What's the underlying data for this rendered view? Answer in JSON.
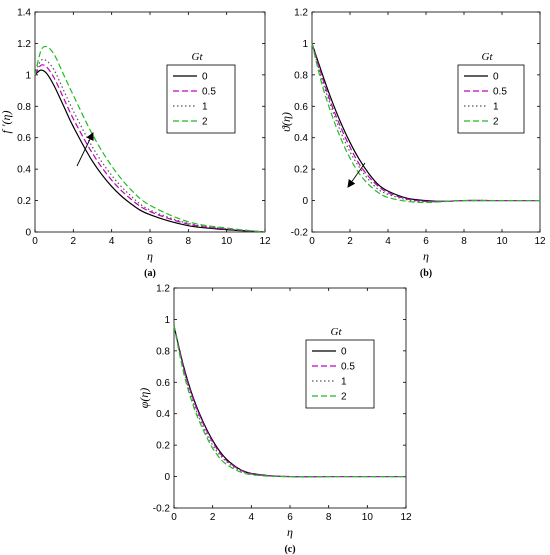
{
  "chart_data": [
    {
      "type": "line",
      "caption": "(a)",
      "xlabel": "η",
      "ylabel": "f ′(η)",
      "xlim": [
        0,
        12
      ],
      "ylim": [
        0,
        1.4
      ],
      "xticks": [
        0,
        2,
        4,
        6,
        8,
        10,
        12
      ],
      "yticks": [
        0,
        0.2,
        0.4,
        0.6,
        0.8,
        1,
        1.2,
        1.4
      ],
      "legend": {
        "title": "Gt",
        "placement": "top-right"
      },
      "annotation": "arrow pointing in direction of increasing Gt",
      "series": [
        {
          "name": "0",
          "color": "#000000",
          "dash": "solid",
          "x": [
            0,
            0.3,
            0.6,
            1,
            1.5,
            2,
            3,
            4,
            5,
            6,
            8,
            10,
            12
          ],
          "y": [
            1.0,
            1.03,
            1.01,
            0.93,
            0.8,
            0.67,
            0.45,
            0.29,
            0.18,
            0.11,
            0.04,
            0.015,
            0
          ]
        },
        {
          "name": "0.5",
          "color": "#c000c0",
          "dash": "dashed",
          "x": [
            0,
            0.3,
            0.6,
            1,
            1.5,
            2,
            3,
            4,
            5,
            6,
            8,
            10,
            12
          ],
          "y": [
            1.0,
            1.06,
            1.05,
            0.98,
            0.85,
            0.72,
            0.5,
            0.33,
            0.21,
            0.13,
            0.05,
            0.018,
            0
          ]
        },
        {
          "name": "1",
          "color": "#555555",
          "dash": "dotted",
          "x": [
            0,
            0.3,
            0.6,
            1,
            1.5,
            2,
            3,
            4,
            5,
            6,
            8,
            10,
            12
          ],
          "y": [
            1.0,
            1.09,
            1.09,
            1.03,
            0.9,
            0.77,
            0.54,
            0.36,
            0.23,
            0.14,
            0.055,
            0.02,
            0
          ]
        },
        {
          "name": "2",
          "color": "#22bb22",
          "dash": "dashed",
          "x": [
            0,
            0.3,
            0.6,
            1,
            1.5,
            2,
            3,
            4,
            5,
            6,
            8,
            10,
            12
          ],
          "y": [
            1.0,
            1.15,
            1.18,
            1.13,
            1.0,
            0.87,
            0.62,
            0.42,
            0.27,
            0.17,
            0.065,
            0.025,
            0
          ]
        }
      ]
    },
    {
      "type": "line",
      "caption": "(b)",
      "xlabel": "η",
      "ylabel": "ϑ(η)",
      "xlim": [
        0,
        12
      ],
      "ylim": [
        -0.2,
        1.2
      ],
      "xticks": [
        0,
        2,
        4,
        6,
        8,
        10,
        12
      ],
      "yticks": [
        -0.2,
        0,
        0.2,
        0.4,
        0.6,
        0.8,
        1,
        1.2
      ],
      "legend": {
        "title": "Gt",
        "placement": "top-right"
      },
      "annotation": "arrow pointing in direction of increasing Gt",
      "series": [
        {
          "name": "0",
          "color": "#000000",
          "dash": "solid",
          "x": [
            0,
            0.5,
            1,
            1.5,
            2,
            2.5,
            3,
            3.5,
            4,
            5,
            6,
            7,
            8,
            10,
            12
          ],
          "y": [
            1.0,
            0.82,
            0.65,
            0.5,
            0.37,
            0.26,
            0.17,
            0.1,
            0.06,
            0.015,
            0.0,
            -0.005,
            0,
            0,
            0
          ]
        },
        {
          "name": "0.5",
          "color": "#c000c0",
          "dash": "dashed",
          "x": [
            0,
            0.5,
            1,
            1.5,
            2,
            2.5,
            3,
            3.5,
            4,
            5,
            6,
            7,
            8,
            10,
            12
          ],
          "y": [
            1.0,
            0.8,
            0.62,
            0.47,
            0.34,
            0.23,
            0.15,
            0.09,
            0.05,
            0.01,
            -0.005,
            -0.005,
            0,
            0,
            0
          ]
        },
        {
          "name": "1",
          "color": "#555555",
          "dash": "dotted",
          "x": [
            0,
            0.5,
            1,
            1.5,
            2,
            2.5,
            3,
            3.5,
            4,
            5,
            6,
            7,
            8,
            10,
            12
          ],
          "y": [
            1.0,
            0.78,
            0.6,
            0.44,
            0.31,
            0.21,
            0.13,
            0.07,
            0.04,
            0.005,
            -0.008,
            -0.005,
            0,
            0,
            0
          ]
        },
        {
          "name": "2",
          "color": "#22bb22",
          "dash": "dashed",
          "x": [
            0,
            0.5,
            1,
            1.5,
            2,
            2.5,
            3,
            3.5,
            4,
            5,
            6,
            7,
            8,
            10,
            12
          ],
          "y": [
            1.0,
            0.75,
            0.56,
            0.4,
            0.27,
            0.17,
            0.1,
            0.05,
            0.02,
            -0.005,
            -0.012,
            -0.006,
            0,
            0,
            0
          ]
        }
      ]
    },
    {
      "type": "line",
      "caption": "(c)",
      "xlabel": "η",
      "ylabel": "φ(η)",
      "xlim": [
        0,
        12
      ],
      "ylim": [
        -0.2,
        1.2
      ],
      "xticks": [
        0,
        2,
        4,
        6,
        8,
        10,
        12
      ],
      "yticks": [
        -0.2,
        0,
        0.2,
        0.4,
        0.6,
        0.8,
        1,
        1.2
      ],
      "legend": {
        "title": "Gt",
        "placement": "top-right"
      },
      "series": [
        {
          "name": "0",
          "color": "#000000",
          "dash": "solid",
          "x": [
            0,
            0.5,
            1,
            1.5,
            2,
            2.5,
            3,
            3.5,
            4,
            5,
            6,
            8,
            10,
            12
          ],
          "y": [
            0.96,
            0.7,
            0.5,
            0.35,
            0.23,
            0.14,
            0.08,
            0.04,
            0.02,
            0.005,
            0,
            0,
            0,
            0
          ]
        },
        {
          "name": "0.5",
          "color": "#c000c0",
          "dash": "dashed",
          "x": [
            0,
            0.5,
            1,
            1.5,
            2,
            2.5,
            3,
            3.5,
            4,
            5,
            6,
            8,
            10,
            12
          ],
          "y": [
            0.96,
            0.69,
            0.49,
            0.34,
            0.22,
            0.13,
            0.075,
            0.038,
            0.018,
            0.004,
            0,
            0,
            0,
            0
          ]
        },
        {
          "name": "1",
          "color": "#555555",
          "dash": "dotted",
          "x": [
            0,
            0.5,
            1,
            1.5,
            2,
            2.5,
            3,
            3.5,
            4,
            5,
            6,
            8,
            10,
            12
          ],
          "y": [
            0.96,
            0.68,
            0.47,
            0.32,
            0.2,
            0.12,
            0.068,
            0.034,
            0.016,
            0.003,
            0,
            0,
            0,
            0
          ]
        },
        {
          "name": "2",
          "color": "#22bb22",
          "dash": "dashed",
          "x": [
            0,
            0.5,
            1,
            1.5,
            2,
            2.5,
            3,
            3.5,
            4,
            5,
            6,
            8,
            10,
            12
          ],
          "y": [
            0.96,
            0.66,
            0.45,
            0.3,
            0.18,
            0.1,
            0.055,
            0.026,
            0.012,
            0.002,
            0,
            0,
            0,
            0
          ]
        }
      ]
    }
  ]
}
